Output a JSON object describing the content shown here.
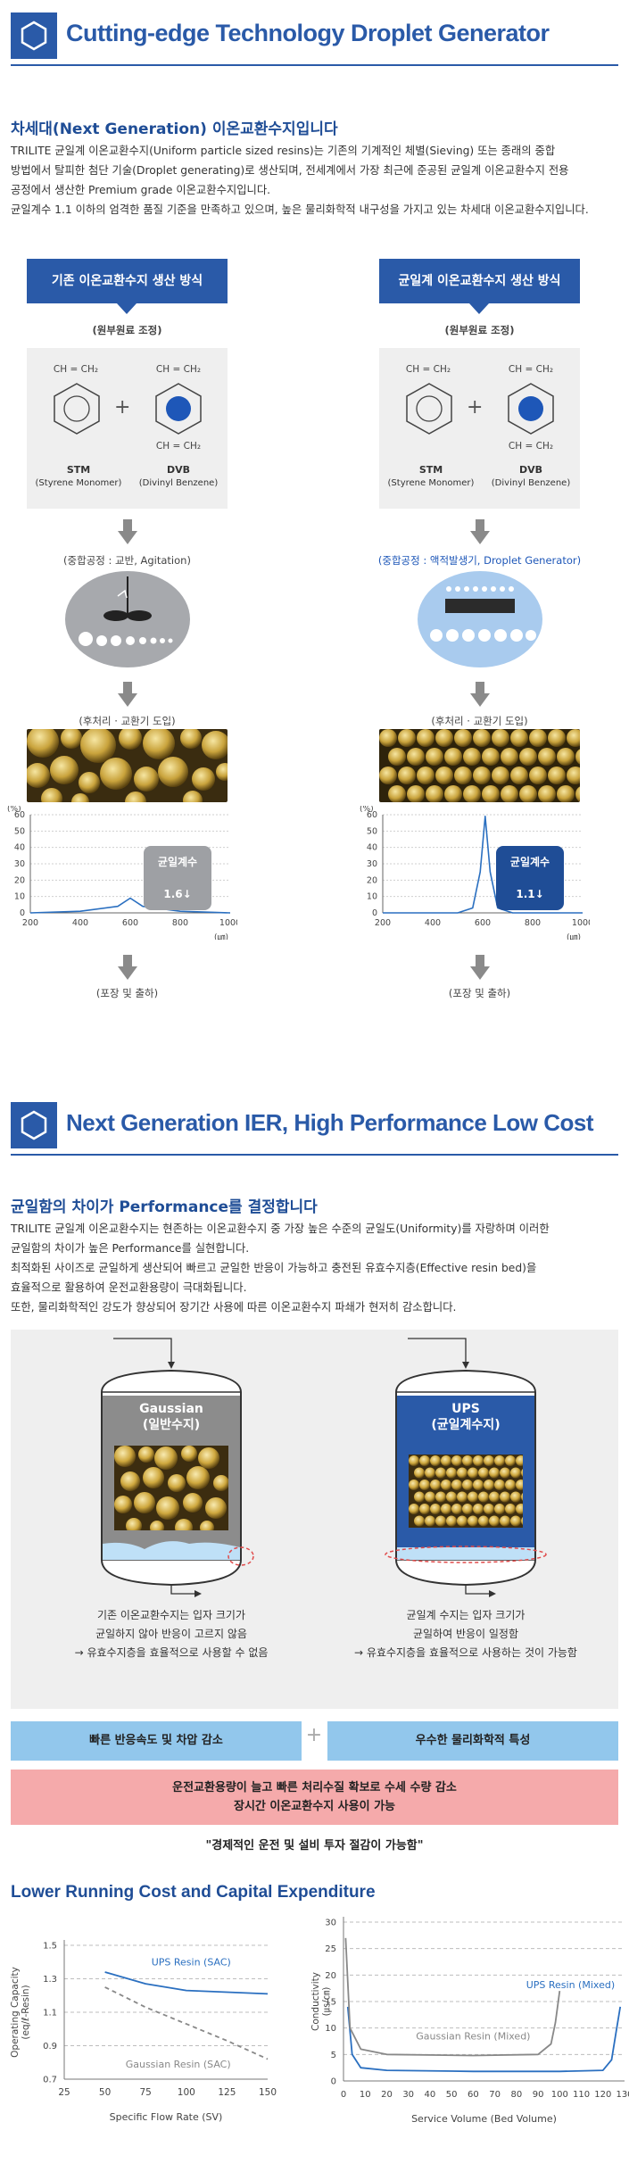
{
  "section1": {
    "title": "Cutting-edge Technology Droplet Generator",
    "subtitle": "차세대(Next Generation) 이온교환수지입니다",
    "paragraph": [
      "TRILITE 균일계 이온교환수지(Uniform particle sized resins)는 기존의 기계적인 체별(Sieving) 또는 종래의 중합",
      "방법에서 탈피한 첨단 기술(Droplet generating)로 생산되며, 전세계에서 가장 최근에 준공된 균일계 이온교환수지 전용",
      "공정에서 생산한 Premium grade 이온교환수지입니다.",
      "균일계수 1.1 이하의 엄격한 품질 기준을 만족하고 있으며, 높은 물리화학적 내구성을 가지고 있는 차세대 이온교환수지입니다."
    ],
    "left": {
      "header": "기존 이온교환수지 생산 방식",
      "raw": "(원부원료 조정)",
      "chem1_top": "CH = CH₂",
      "chem2_top": "CH = CH₂",
      "chem2_bottom": "CH = CH₂",
      "plus": "+",
      "stm": "STM",
      "stm_sub": "(Styrene Monomer)",
      "dvb": "DVB",
      "dvb_sub": "(Divinyl Benzene)",
      "process": "(중합공정 : 교반, Agitation)",
      "post": "(후처리 · 교환기 도입)",
      "chip": "균일계수 1.6↓",
      "pack": "(포장 및 출하)"
    },
    "right": {
      "header": "균일계 이온교환수지 생산 방식",
      "raw": "(원부원료 조정)",
      "chem1_top": "CH = CH₂",
      "chem2_top": "CH = CH₂",
      "chem2_bottom": "CH = CH₂",
      "plus": "+",
      "stm": "STM",
      "stm_sub": "(Styrene Monomer)",
      "dvb": "DVB",
      "dvb_sub": "(Divinyl Benzene)",
      "process": "(중합공정 : 액적발생기, Droplet Generator)",
      "post": "(후처리 · 교환기 도입)",
      "chip": "균일계수 1.1↓",
      "pack": "(포장 및 출하)"
    }
  },
  "distribution_axes": {
    "y_unit": "(%)",
    "y_ticks": [
      "60",
      "50",
      "40",
      "30",
      "20",
      "10",
      "0"
    ],
    "x_ticks": [
      "200",
      "400",
      "600",
      "800",
      "1000"
    ],
    "x_unit": "(㎛)"
  },
  "section2": {
    "title": "Next Generation IER, High Performance Low Cost",
    "subtitle": "균일함의 차이가 Performance를 결정합니다",
    "paragraph": [
      "TRILITE 균일계 이온교환수지는 현존하는 이온교환수지 중 가장 높은 수준의 균일도(Uniformity)를 자랑하며 이러한",
      "균일함의 차이가 높은 Performance를 실현합니다.",
      "최적화된 사이즈로 균일하게 생산되어 빠르고 균일한 반응이 가능하고 충전된 유효수지층(Effective resin bed)을",
      "효율적으로 활용하여 운전교환용량이 극대화됩니다.",
      "또한, 물리화학적인 강도가 향상되어 장기간 사용에 따른 이온교환수지 파쇄가 현저히 감소합니다."
    ],
    "vessel_left_label": [
      "Gaussian",
      "(일반수지)"
    ],
    "vessel_right_label": [
      "UPS",
      "(균일계수지)"
    ],
    "left_caption": [
      "기존 이온교환수지는 입자 크기가",
      "균일하지 않아 반응이 고르지 않음",
      "→ 유효수지층을 효율적으로 사용할 수 없음"
    ],
    "right_caption": [
      "균일계 수지는 입자 크기가",
      "균일하여 반응이 일정함",
      "→ 유효수지층을 효율적으로 사용하는 것이 가능함"
    ],
    "pill_left": "빠른 반응속도 및 차압 감소",
    "pill_plus": "+",
    "pill_right": "우수한 물리화학적 특성",
    "red_box": [
      "운전교환용량이 늘고 빠른 처리수질 확보로 수세 수량 감소",
      "장시간 이온교환수지 사용이 가능"
    ],
    "quote": "\"경제적인 운전 및 설비 투자 절감이 가능함\""
  },
  "section3": {
    "title": "Lower Running Cost and Capital Expenditure"
  },
  "chart_data": [
    {
      "type": "line",
      "title": "",
      "xlabel": "Specific Flow Rate (SV)",
      "ylabel": "Operating Capacity (eq/ℓ-Resin)",
      "xlim": [
        25,
        150
      ],
      "ylim": [
        0.7,
        1.5
      ],
      "x_ticks": [
        "25",
        "50",
        "75",
        "100",
        "125",
        "150"
      ],
      "y_ticks": [
        "1.5",
        "1.3",
        "1.1",
        "0.9",
        "0.7"
      ],
      "series": [
        {
          "name": "UPS Resin (SAC)",
          "color": "#2a6fc0",
          "x": [
            50,
            75,
            100,
            125,
            150
          ],
          "y": [
            1.34,
            1.27,
            1.23,
            1.22,
            1.21
          ]
        },
        {
          "name": "Gaussian Resin (SAC)",
          "color": "#888888",
          "x": [
            50,
            75,
            100,
            125,
            150
          ],
          "y": [
            1.25,
            1.13,
            1.03,
            0.93,
            0.82
          ]
        }
      ]
    },
    {
      "type": "line",
      "title": "",
      "xlabel": "Service Volume (Bed Volume)",
      "ylabel": "Conductivity (㎲/㎝)",
      "xlim": [
        0,
        130
      ],
      "ylim": [
        0,
        30
      ],
      "x_ticks": [
        "0",
        "10",
        "20",
        "30",
        "40",
        "50",
        "60",
        "70",
        "80",
        "90",
        "100",
        "110",
        "120",
        "130"
      ],
      "y_ticks": [
        "30",
        "25",
        "20",
        "15",
        "10",
        "5",
        "0"
      ],
      "series": [
        {
          "name": "UPS Resin (Mixed)",
          "color": "#2a6fc0",
          "x": [
            2,
            4,
            8,
            20,
            60,
            100,
            120,
            124,
            126,
            128
          ],
          "y": [
            14,
            5,
            2.5,
            2,
            1.8,
            1.8,
            2,
            4,
            9,
            14
          ]
        },
        {
          "name": "Gaussian Resin (Mixed)",
          "color": "#888888",
          "x": [
            1,
            3,
            8,
            20,
            60,
            90,
            96,
            98,
            100
          ],
          "y": [
            27,
            10,
            6,
            5,
            4.8,
            5,
            7,
            11,
            17
          ]
        }
      ]
    },
    {
      "type": "line",
      "title": "",
      "xlabel": "",
      "ylabel": "",
      "x_unit": "㎛",
      "y_unit": "%",
      "xlim": [
        200,
        1000
      ],
      "ylim": [
        0,
        60
      ],
      "series": [
        {
          "name": "",
          "color": "#2a6fc0",
          "x": [
            200,
            400,
            550,
            600,
            650,
            800,
            1000
          ],
          "y": [
            0,
            1,
            4,
            9,
            4,
            1,
            0
          ]
        }
      ]
    },
    {
      "type": "line",
      "title": "",
      "xlabel": "",
      "ylabel": "",
      "x_unit": "㎛",
      "y_unit": "%",
      "xlim": [
        200,
        1000
      ],
      "ylim": [
        0,
        60
      ],
      "series": [
        {
          "name": "",
          "color": "#2a6fc0",
          "x": [
            200,
            500,
            560,
            590,
            610,
            630,
            660,
            720,
            1000
          ],
          "y": [
            0,
            0,
            3,
            25,
            59,
            25,
            3,
            0,
            0
          ]
        }
      ]
    }
  ]
}
